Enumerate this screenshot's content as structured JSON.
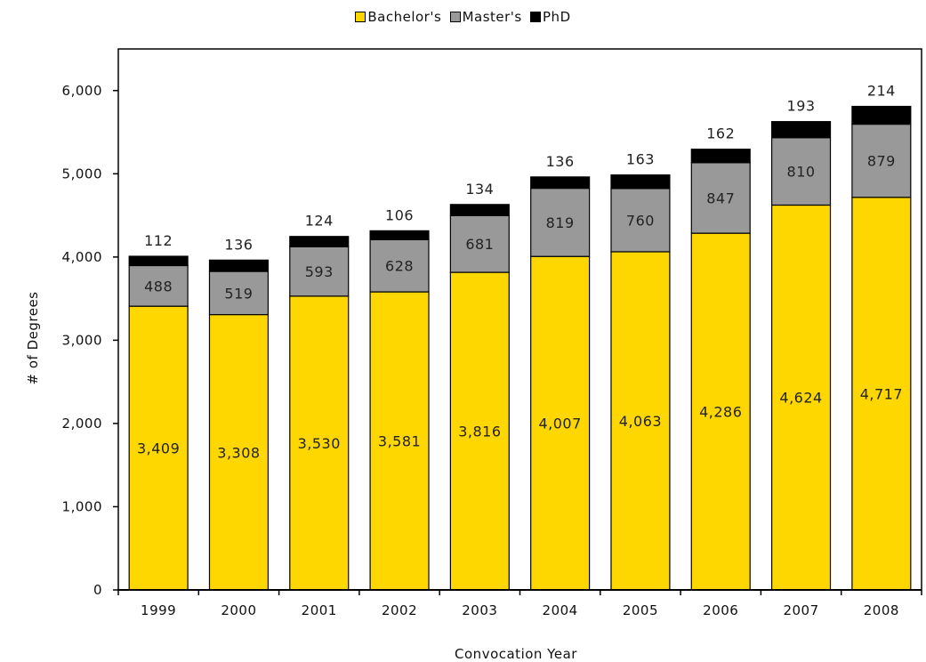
{
  "chart_data": {
    "type": "bar",
    "stacked": true,
    "title": "",
    "xlabel": "Convocation Year",
    "ylabel": "# of Degrees",
    "ylim": [
      0,
      6500
    ],
    "yticks": [
      0,
      1000,
      2000,
      3000,
      4000,
      5000,
      6000
    ],
    "ytick_labels": [
      "0",
      "1,000",
      "2,000",
      "3,000",
      "4,000",
      "5,000",
      "6,000"
    ],
    "categories": [
      "1999",
      "2000",
      "2001",
      "2002",
      "2003",
      "2004",
      "2005",
      "2006",
      "2007",
      "2008"
    ],
    "legend_position": "top-center",
    "grid": false,
    "series": [
      {
        "name": "Bachelor's",
        "color": "#FFD700",
        "values": [
          3409,
          3308,
          3530,
          3581,
          3816,
          4007,
          4063,
          4286,
          4624,
          4717
        ],
        "labels": [
          "3,409",
          "3,308",
          "3,530",
          "3,581",
          "3,816",
          "4,007",
          "4,063",
          "4,286",
          "4,624",
          "4,717"
        ]
      },
      {
        "name": "Master's",
        "color": "#999999",
        "values": [
          488,
          519,
          593,
          628,
          681,
          819,
          760,
          847,
          810,
          879
        ],
        "labels": [
          "488",
          "519",
          "593",
          "628",
          "681",
          "819",
          "760",
          "847",
          "810",
          "879"
        ]
      },
      {
        "name": "PhD",
        "color": "#000000",
        "values": [
          112,
          136,
          124,
          106,
          134,
          136,
          163,
          162,
          193,
          214
        ],
        "labels": [
          "112",
          "136",
          "124",
          "106",
          "134",
          "136",
          "163",
          "162",
          "193",
          "214"
        ]
      }
    ]
  }
}
